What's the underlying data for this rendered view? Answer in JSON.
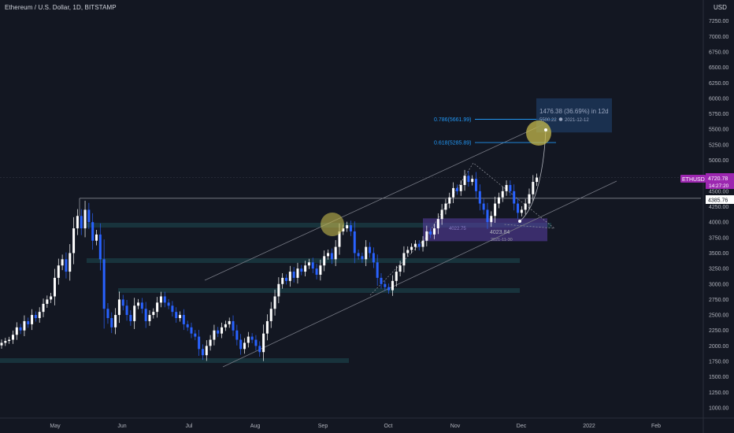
{
  "header": {
    "title": "Ethereum / U.S. Dollar, 1D, BITSTAMP",
    "currency": "USD"
  },
  "colors": {
    "background": "#131722",
    "up": "#ffffff",
    "down": "#2962ff",
    "channel": "#787b86",
    "fib": "#2196f3",
    "highlight": "#c5b94c",
    "zone": "#5b3fa8",
    "support": "#1e4a52",
    "symbol_badge": "#9c27b0"
  },
  "chart_data": {
    "type": "candlestick",
    "symbol": "ETHUSD",
    "ylim": [
      800,
      7500
    ],
    "y_ticks": [
      1000,
      1250,
      1500,
      1750,
      2000,
      2250,
      2500,
      2750,
      3000,
      3250,
      3500,
      3750,
      4000,
      4250,
      4500,
      4750,
      5000,
      5250,
      5500,
      5750,
      6000,
      6250,
      6500,
      6750,
      7000,
      7250
    ],
    "x_ticks": [
      "May",
      "Jun",
      "Jul",
      "Aug",
      "Sep",
      "Oct",
      "Nov",
      "Dec",
      "2022",
      "Feb"
    ],
    "price_badge": {
      "symbol": "ETHUSD",
      "price": "4720.78",
      "countdown": "14:27:20"
    },
    "crosshair_price": "4385.76",
    "fib_levels": [
      {
        "label": "0.786(5661.99)",
        "value": 5661.99
      },
      {
        "label": "0.618(5285.89)",
        "value": 5285.89
      }
    ],
    "projection": {
      "text": "1476.38 (36.69%) in 12d",
      "target": "5500.22",
      "date": "2021-12-12",
      "to_value": 5500
    },
    "low_marker": {
      "value": "4023.84",
      "date": "2021-11-30",
      "zone_label": "4022.75"
    },
    "series": [
      {
        "name": "ETHUSD",
        "values": [
          2050,
          2080,
          2100,
          2180,
          2300,
          2250,
          2400,
          2350,
          2500,
          2450,
          2550,
          2680,
          2750,
          2800,
          3100,
          3300,
          3400,
          3200,
          3500,
          3900,
          4100,
          3900,
          4200,
          4000,
          3700,
          3800,
          3400,
          2600,
          2450,
          2300,
          2500,
          2750,
          2650,
          2500,
          2400,
          2650,
          2700,
          2600,
          2400,
          2500,
          2550,
          2700,
          2800,
          2700,
          2650,
          2550,
          2450,
          2500,
          2350,
          2300,
          2200,
          2150,
          1950,
          1850,
          2000,
          2100,
          2250,
          2200,
          2300,
          2350,
          2400,
          2250,
          2100,
          1950,
          2050,
          2150,
          2100,
          2000,
          1900,
          2200,
          2400,
          2600,
          2800,
          3000,
          3100,
          3050,
          3200,
          3100,
          3250,
          3200,
          3300,
          3350,
          3250,
          3150,
          3300,
          3450,
          3500,
          3400,
          3600,
          3850,
          3900,
          3950,
          3850,
          3500,
          3450,
          3400,
          3600,
          3500,
          3350,
          3100,
          3000,
          2950,
          2900,
          3050,
          3200,
          3300,
          3500,
          3550,
          3600,
          3650,
          3600,
          3700,
          3850,
          3800,
          3900,
          4050,
          4200,
          4300,
          4400,
          4550,
          4500,
          4600,
          4750,
          4650,
          4700,
          4500,
          4300,
          4200,
          4000,
          4100,
          4300,
          4400,
          4500,
          4600,
          4500,
          4300,
          4150,
          4200,
          4300,
          4450,
          4650,
          4720
        ]
      }
    ]
  }
}
